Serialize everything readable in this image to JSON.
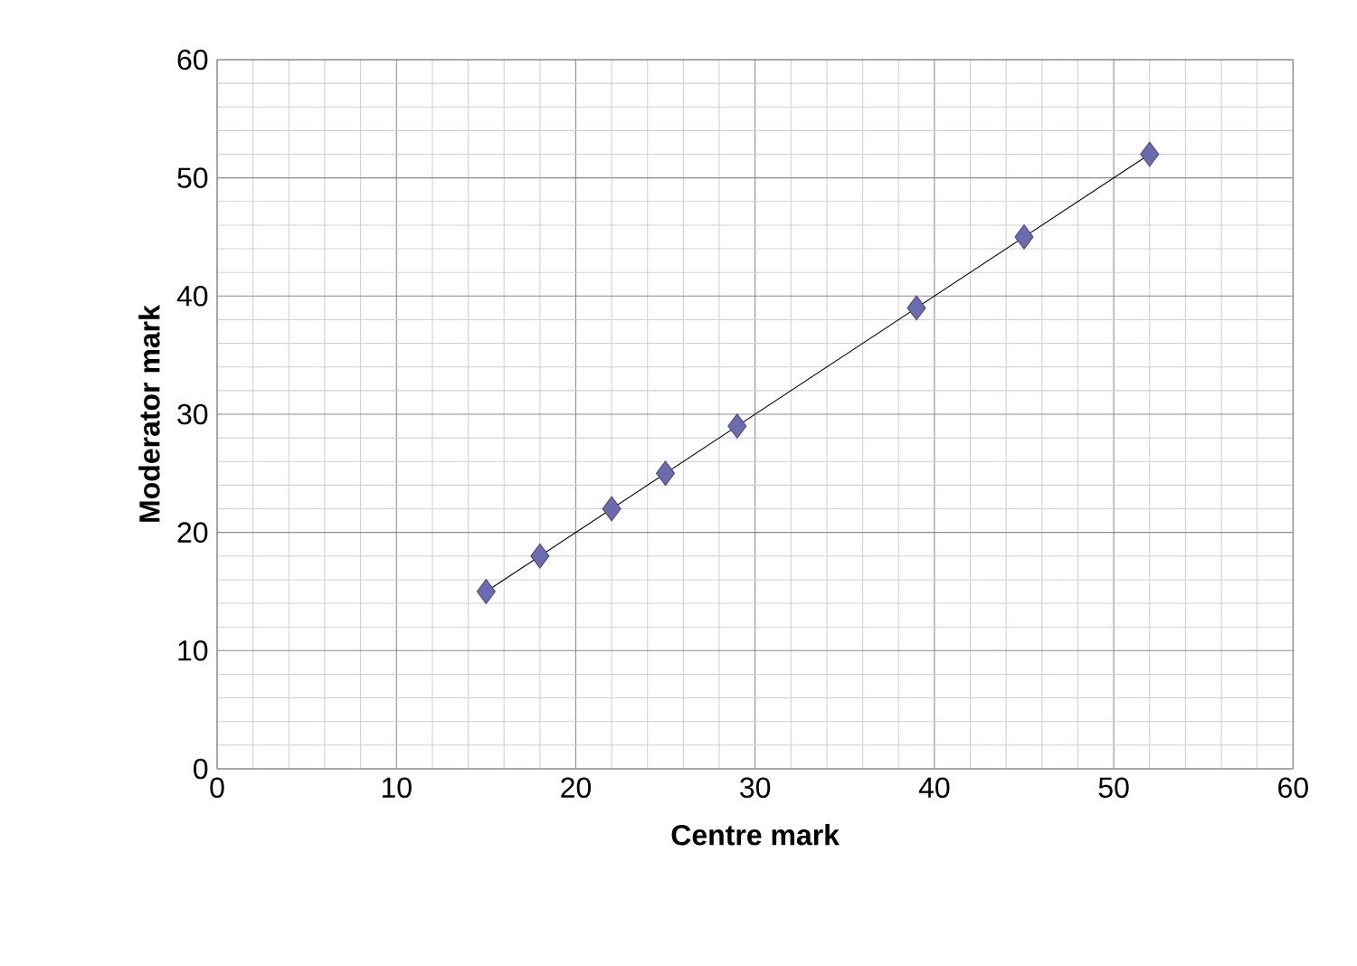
{
  "chart_data": {
    "type": "scatter",
    "xlabel": "Centre mark",
    "ylabel": "Moderator mark",
    "xlim": [
      0,
      60
    ],
    "ylim": [
      0,
      60
    ],
    "xticks": [
      0,
      10,
      20,
      30,
      40,
      50,
      60
    ],
    "yticks": [
      0,
      10,
      20,
      30,
      40,
      50,
      60
    ],
    "grid": true,
    "marker": "diamond",
    "series": [
      {
        "color": "#6b6bb0",
        "x": [
          15,
          18,
          22,
          25,
          29,
          39,
          45,
          52
        ],
        "values": [
          15,
          18,
          22,
          25,
          29,
          39,
          45,
          52
        ]
      },
      {
        "type": "line",
        "color": "#000000",
        "marker": "none",
        "x": [
          15,
          52
        ],
        "values": [
          15,
          52
        ]
      }
    ]
  }
}
